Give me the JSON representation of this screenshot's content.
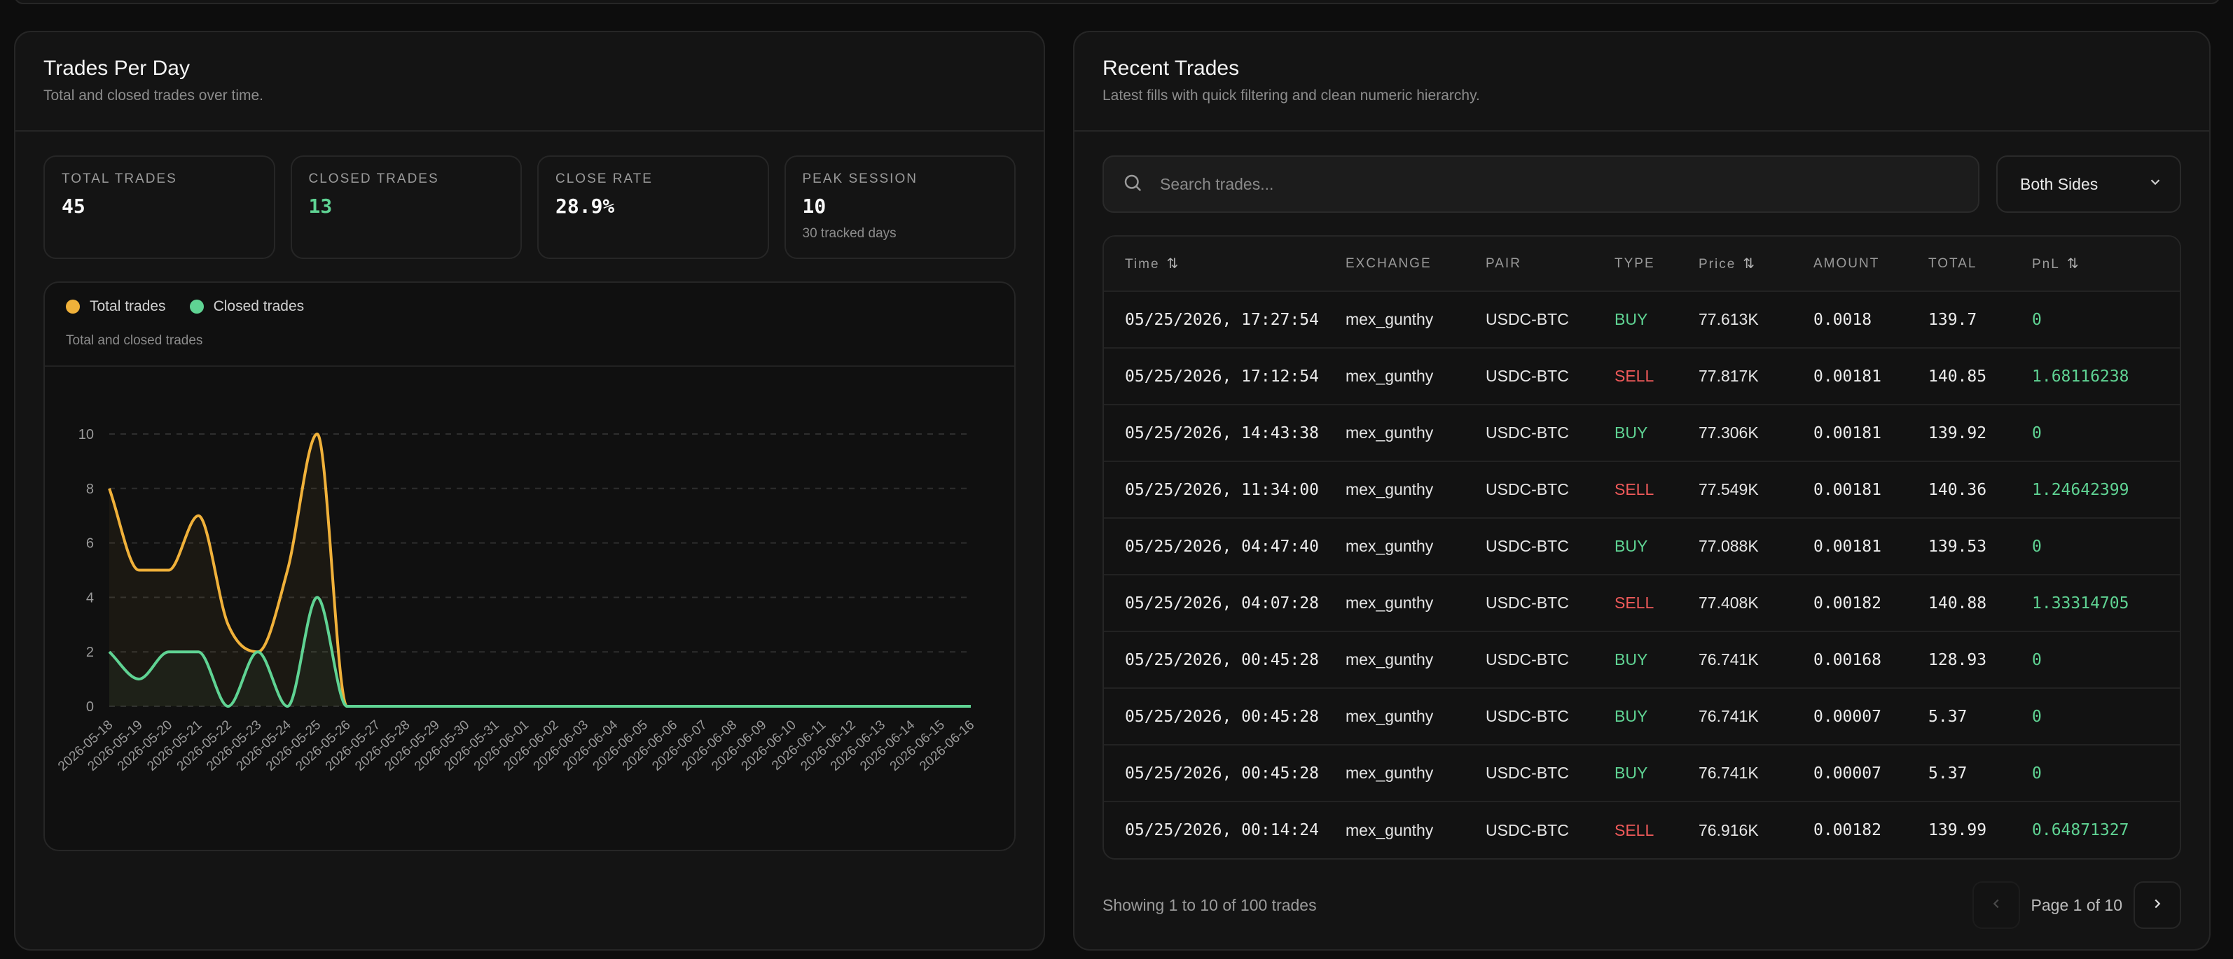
{
  "trades_per_day": {
    "title": "Trades Per Day",
    "subtitle": "Total and closed trades over time.",
    "stats": [
      {
        "label": "TOTAL TRADES",
        "value": "45",
        "sub": ""
      },
      {
        "label": "CLOSED TRADES",
        "value": "13",
        "sub": ""
      },
      {
        "label": "CLOSE RATE",
        "value": "28.9%",
        "sub": ""
      },
      {
        "label": "PEAK SESSION",
        "value": "10",
        "sub": "30 tracked days"
      }
    ],
    "legend": {
      "total": "Total trades",
      "closed": "Closed trades"
    },
    "chart_caption": "Total and closed trades",
    "colors": {
      "total": "#f0b13a",
      "closed": "#5fd393"
    }
  },
  "chart_data": {
    "type": "line",
    "title": "",
    "xlabel": "",
    "ylabel": "",
    "ylim": [
      0,
      10
    ],
    "yticks": [
      0,
      2,
      4,
      6,
      8,
      10
    ],
    "grid": true,
    "legend_position": "top-left",
    "x": [
      "2026-05-18",
      "2026-05-19",
      "2026-05-20",
      "2026-05-21",
      "2026-05-22",
      "2026-05-23",
      "2026-05-24",
      "2026-05-25",
      "2026-05-26",
      "2026-05-27",
      "2026-05-28",
      "2026-05-29",
      "2026-05-30",
      "2026-05-31",
      "2026-06-01",
      "2026-06-02",
      "2026-06-03",
      "2026-06-04",
      "2026-06-05",
      "2026-06-06",
      "2026-06-07",
      "2026-06-08",
      "2026-06-09",
      "2026-06-10",
      "2026-06-11",
      "2026-06-12",
      "2026-06-13",
      "2026-06-14",
      "2026-06-15",
      "2026-06-16"
    ],
    "series": [
      {
        "name": "Total trades",
        "values": [
          8,
          5,
          5,
          7,
          3,
          2,
          5,
          10,
          0,
          0,
          0,
          0,
          0,
          0,
          0,
          0,
          0,
          0,
          0,
          0,
          0,
          0,
          0,
          0,
          0,
          0,
          0,
          0,
          0,
          0
        ]
      },
      {
        "name": "Closed trades",
        "values": [
          2,
          1,
          2,
          2,
          0,
          2,
          0,
          4,
          0,
          0,
          0,
          0,
          0,
          0,
          0,
          0,
          0,
          0,
          0,
          0,
          0,
          0,
          0,
          0,
          0,
          0,
          0,
          0,
          0,
          0
        ]
      }
    ]
  },
  "recent_trades": {
    "title": "Recent Trades",
    "subtitle": "Latest fills with quick filtering and clean numeric hierarchy.",
    "search": {
      "placeholder": "Search trades..."
    },
    "side_filter": {
      "selected": "Both Sides"
    },
    "columns": {
      "time": "Time",
      "exchange": "EXCHANGE",
      "pair": "PAIR",
      "type": "TYPE",
      "price": "Price",
      "amount": "AMOUNT",
      "total": "TOTAL",
      "pnl": "PnL"
    },
    "rows": [
      {
        "time": "05/25/2026, 17:27:54",
        "exchange": "mex_gunthy",
        "pair": "USDC-BTC",
        "type": "BUY",
        "price": "77.613K",
        "amount": "0.0018",
        "total": "139.7",
        "pnl": "0"
      },
      {
        "time": "05/25/2026, 17:12:54",
        "exchange": "mex_gunthy",
        "pair": "USDC-BTC",
        "type": "SELL",
        "price": "77.817K",
        "amount": "0.00181",
        "total": "140.85",
        "pnl": "1.68116238"
      },
      {
        "time": "05/25/2026, 14:43:38",
        "exchange": "mex_gunthy",
        "pair": "USDC-BTC",
        "type": "BUY",
        "price": "77.306K",
        "amount": "0.00181",
        "total": "139.92",
        "pnl": "0"
      },
      {
        "time": "05/25/2026, 11:34:00",
        "exchange": "mex_gunthy",
        "pair": "USDC-BTC",
        "type": "SELL",
        "price": "77.549K",
        "amount": "0.00181",
        "total": "140.36",
        "pnl": "1.24642399"
      },
      {
        "time": "05/25/2026, 04:47:40",
        "exchange": "mex_gunthy",
        "pair": "USDC-BTC",
        "type": "BUY",
        "price": "77.088K",
        "amount": "0.00181",
        "total": "139.53",
        "pnl": "0"
      },
      {
        "time": "05/25/2026, 04:07:28",
        "exchange": "mex_gunthy",
        "pair": "USDC-BTC",
        "type": "SELL",
        "price": "77.408K",
        "amount": "0.00182",
        "total": "140.88",
        "pnl": "1.33314705"
      },
      {
        "time": "05/25/2026, 00:45:28",
        "exchange": "mex_gunthy",
        "pair": "USDC-BTC",
        "type": "BUY",
        "price": "76.741K",
        "amount": "0.00168",
        "total": "128.93",
        "pnl": "0"
      },
      {
        "time": "05/25/2026, 00:45:28",
        "exchange": "mex_gunthy",
        "pair": "USDC-BTC",
        "type": "BUY",
        "price": "76.741K",
        "amount": "0.00007",
        "total": "5.37",
        "pnl": "0"
      },
      {
        "time": "05/25/2026, 00:45:28",
        "exchange": "mex_gunthy",
        "pair": "USDC-BTC",
        "type": "BUY",
        "price": "76.741K",
        "amount": "0.00007",
        "total": "5.37",
        "pnl": "0"
      },
      {
        "time": "05/25/2026, 00:14:24",
        "exchange": "mex_gunthy",
        "pair": "USDC-BTC",
        "type": "SELL",
        "price": "76.916K",
        "amount": "0.00182",
        "total": "139.99",
        "pnl": "0.64871327"
      }
    ],
    "footer": {
      "showing": "Showing 1 to 10 of 100 trades",
      "page_label": "Page 1 of 10"
    }
  }
}
